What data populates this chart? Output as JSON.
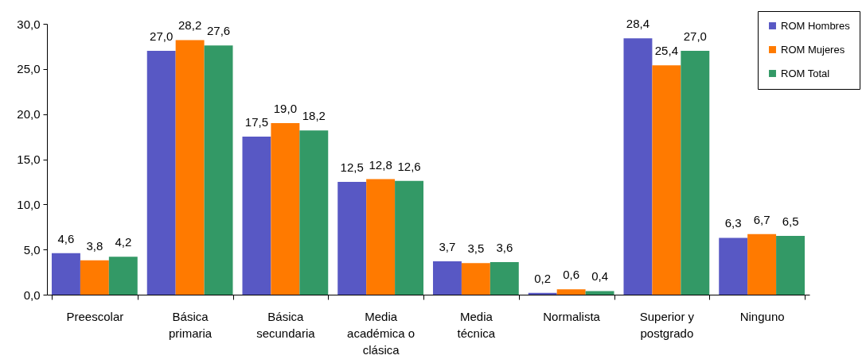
{
  "chart_data": {
    "type": "bar",
    "categories": [
      "Preescolar",
      "Básica primaria",
      "Básica secundaria",
      "Media académica o clásica",
      "Media técnica",
      "Normalista",
      "Superior y postgrado",
      "Ninguno"
    ],
    "series": [
      {
        "name": "ROM Hombres",
        "color": "#5858c4",
        "values": [
          4.6,
          27.0,
          17.5,
          12.5,
          3.7,
          0.2,
          28.4,
          6.3
        ],
        "value_labels": [
          "4,6",
          "27,0",
          "17,5",
          "12,5",
          "3,7",
          "0,2",
          "28,4",
          "6,3"
        ]
      },
      {
        "name": "ROM Mujeres",
        "color": "#ff7a00",
        "values": [
          3.8,
          28.2,
          19.0,
          12.8,
          3.5,
          0.6,
          25.4,
          6.7
        ],
        "value_labels": [
          "3,8",
          "28,2",
          "19,0",
          "12,8",
          "3,5",
          "0,6",
          "25,4",
          "6,7"
        ]
      },
      {
        "name": "ROM Total",
        "color": "#339966",
        "values": [
          4.2,
          27.6,
          18.2,
          12.6,
          3.6,
          0.4,
          27.0,
          6.5
        ],
        "value_labels": [
          "4,2",
          "27,6",
          "18,2",
          "12,6",
          "3,6",
          "0,4",
          "27,0",
          "6,5"
        ]
      }
    ],
    "ylim": [
      0,
      30
    ],
    "yticks": [
      {
        "value": 0,
        "label": "0,0"
      },
      {
        "value": 5,
        "label": "5,0"
      },
      {
        "value": 10,
        "label": "10,0"
      },
      {
        "value": 15,
        "label": "15,0"
      },
      {
        "value": 20,
        "label": "20,0"
      },
      {
        "value": 25,
        "label": "25,0"
      },
      {
        "value": 30,
        "label": "30,0"
      }
    ],
    "legend": "top right"
  }
}
